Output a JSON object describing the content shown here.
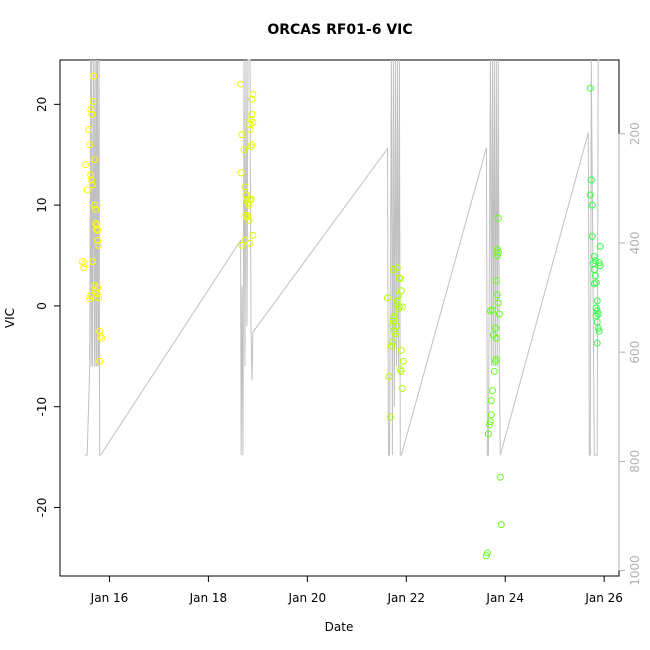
{
  "chart_data": {
    "type": "scatter",
    "title": "ORCAS RF01-6 VIC",
    "xlabel": "Date",
    "ylabel": "VIC",
    "x_ticks": [
      {
        "value": 16,
        "label": "Jan 16"
      },
      {
        "value": 18,
        "label": "Jan 18"
      },
      {
        "value": 20,
        "label": "Jan 20"
      },
      {
        "value": 22,
        "label": "Jan 22"
      },
      {
        "value": 24,
        "label": "Jan 24"
      },
      {
        "value": 26,
        "label": "Jan 26"
      }
    ],
    "y_ticks": [
      -20,
      -10,
      0,
      10,
      20
    ],
    "y_right_ticks": [
      200,
      400,
      600,
      800,
      1000
    ],
    "xlim": [
      15.0,
      26.3
    ],
    "ylim": [
      -26.8,
      24.4
    ],
    "y_right_lim": [
      1010,
      65
    ],
    "grid": false,
    "colors": {
      "flight1": "#ffff00",
      "flight2": "#e6ff00",
      "flight3": "#b3ff00",
      "flight4": "#66ff1a",
      "flight5": "#33ff44",
      "altitude_line": "#c0c0c0"
    },
    "series": [
      {
        "flight": 1,
        "color_key": "flight1",
        "points": [
          [
            15.45,
            4.4
          ],
          [
            15.48,
            3.8
          ],
          [
            15.5,
            4.2
          ],
          [
            15.52,
            14
          ],
          [
            15.55,
            11.5
          ],
          [
            15.58,
            17.5
          ],
          [
            15.6,
            16
          ],
          [
            15.62,
            13
          ],
          [
            15.63,
            12.5
          ],
          [
            15.65,
            12
          ],
          [
            15.67,
            20.3
          ],
          [
            15.68,
            22.8
          ],
          [
            15.7,
            14.5
          ],
          [
            15.7,
            10
          ],
          [
            15.72,
            9.6
          ],
          [
            15.72,
            8.2
          ],
          [
            15.74,
            8
          ],
          [
            15.74,
            7.6
          ],
          [
            15.76,
            7.5
          ],
          [
            15.76,
            6.5
          ],
          [
            15.78,
            6
          ],
          [
            15.66,
            4.4
          ],
          [
            15.7,
            2
          ],
          [
            15.72,
            1.5
          ],
          [
            15.75,
            1.2
          ],
          [
            15.78,
            0.8
          ],
          [
            15.62,
            1
          ],
          [
            15.6,
            0.7
          ],
          [
            15.8,
            -2.5
          ],
          [
            15.82,
            -3
          ],
          [
            15.84,
            -3.2
          ],
          [
            15.8,
            -5.5
          ],
          [
            15.76,
            1.8
          ],
          [
            15.64,
            19
          ],
          [
            15.62,
            19.5
          ]
        ]
      },
      {
        "flight": 2,
        "color_key": "flight2",
        "points": [
          [
            18.65,
            22
          ],
          [
            18.68,
            17
          ],
          [
            18.72,
            15.5
          ],
          [
            18.66,
            13.2
          ],
          [
            18.74,
            11.8
          ],
          [
            18.76,
            11
          ],
          [
            18.78,
            10.5
          ],
          [
            18.8,
            10.2
          ],
          [
            18.82,
            10
          ],
          [
            18.84,
            10.5
          ],
          [
            18.86,
            10.6
          ],
          [
            18.76,
            9
          ],
          [
            18.78,
            8.8
          ],
          [
            18.8,
            8.9
          ],
          [
            18.82,
            8.5
          ],
          [
            18.74,
            6.5
          ],
          [
            18.68,
            6
          ],
          [
            18.84,
            6.2
          ],
          [
            18.9,
            7
          ],
          [
            18.86,
            15.8
          ],
          [
            18.88,
            16
          ],
          [
            18.84,
            18
          ],
          [
            18.86,
            18.5
          ],
          [
            18.88,
            19
          ],
          [
            18.88,
            20.5
          ],
          [
            18.9,
            21
          ],
          [
            18.84,
            17.5
          ],
          [
            18.9,
            18.2
          ]
        ]
      },
      {
        "flight": 3,
        "color_key": "flight3",
        "points": [
          [
            21.62,
            0.8
          ],
          [
            21.65,
            -7
          ],
          [
            21.68,
            -11
          ],
          [
            21.7,
            -4
          ],
          [
            21.72,
            -2
          ],
          [
            21.74,
            -1.5
          ],
          [
            21.75,
            -1.2
          ],
          [
            21.76,
            -2.5
          ],
          [
            21.78,
            -2.8
          ],
          [
            21.8,
            -2
          ],
          [
            21.82,
            0.5
          ],
          [
            21.84,
            1
          ],
          [
            21.74,
            3.6
          ],
          [
            21.82,
            3.8
          ],
          [
            21.86,
            2.8
          ],
          [
            21.88,
            2.7
          ],
          [
            21.9,
            1.5
          ],
          [
            21.92,
            -0.1
          ],
          [
            21.9,
            -4.4
          ],
          [
            21.88,
            -6.3
          ],
          [
            21.9,
            -6.5
          ],
          [
            21.92,
            -8.2
          ],
          [
            21.94,
            -5.5
          ],
          [
            21.8,
            0.2
          ],
          [
            21.84,
            -0.3
          ],
          [
            21.76,
            -1
          ],
          [
            21.72,
            -3.6
          ],
          [
            21.86,
            -0.1
          ]
        ]
      },
      {
        "flight": 4,
        "color_key": "flight4",
        "points": [
          [
            23.62,
            -24.8
          ],
          [
            23.64,
            -24.5
          ],
          [
            23.66,
            -12.7
          ],
          [
            23.68,
            -11.8
          ],
          [
            23.7,
            -11.5
          ],
          [
            23.72,
            -10.8
          ],
          [
            23.74,
            -8.4
          ],
          [
            23.72,
            -9.4
          ],
          [
            23.74,
            -0.4
          ],
          [
            23.76,
            -2.9
          ],
          [
            23.78,
            -6.5
          ],
          [
            23.8,
            -5.5
          ],
          [
            23.82,
            -5.3
          ],
          [
            23.8,
            -2.2
          ],
          [
            23.82,
            2.5
          ],
          [
            23.84,
            5
          ],
          [
            23.86,
            5.3
          ],
          [
            23.84,
            5.6
          ],
          [
            23.86,
            8.7
          ],
          [
            23.84,
            1.1
          ],
          [
            23.86,
            0.3
          ],
          [
            23.88,
            -0.8
          ],
          [
            23.9,
            -17
          ],
          [
            23.92,
            -21.7
          ],
          [
            23.7,
            -0.5
          ],
          [
            23.82,
            -3.2
          ]
        ]
      },
      {
        "flight": 5,
        "color_key": "flight5",
        "points": [
          [
            25.72,
            21.6
          ],
          [
            25.72,
            11
          ],
          [
            25.74,
            12.5
          ],
          [
            25.76,
            10
          ],
          [
            25.76,
            6.9
          ],
          [
            25.8,
            4.9
          ],
          [
            25.82,
            4.5
          ],
          [
            25.78,
            4.2
          ],
          [
            25.8,
            3.6
          ],
          [
            25.82,
            3
          ],
          [
            25.8,
            2.2
          ],
          [
            25.84,
            2.3
          ],
          [
            25.86,
            0.5
          ],
          [
            25.84,
            -0.2
          ],
          [
            25.86,
            -0.5
          ],
          [
            25.88,
            -0.8
          ],
          [
            25.84,
            -1
          ],
          [
            25.86,
            -1.6
          ],
          [
            25.88,
            -2.2
          ],
          [
            25.9,
            -2.5
          ],
          [
            25.86,
            -3.7
          ],
          [
            25.9,
            4.3
          ],
          [
            25.92,
            4
          ],
          [
            25.92,
            5.9
          ]
        ]
      }
    ],
    "altitude_trace": [
      [
        15.5,
        -14.8
      ],
      [
        15.55,
        -14.8
      ],
      [
        15.6,
        -6
      ],
      [
        15.62,
        24.4
      ],
      [
        15.63,
        -6
      ],
      [
        15.64,
        24.4
      ],
      [
        15.66,
        -6
      ],
      [
        15.68,
        24.4
      ],
      [
        15.7,
        -6
      ],
      [
        15.71,
        24.4
      ],
      [
        15.73,
        -6
      ],
      [
        15.74,
        24.4
      ],
      [
        15.75,
        -6
      ],
      [
        15.76,
        24.4
      ],
      [
        15.78,
        -6
      ],
      [
        15.79,
        24.4
      ],
      [
        15.8,
        -14.8
      ],
      [
        15.82,
        -14.8
      ],
      [
        18.65,
        6.5
      ],
      [
        18.66,
        -14.8
      ],
      [
        18.68,
        2
      ],
      [
        18.7,
        -14.8
      ],
      [
        18.72,
        24.4
      ],
      [
        18.74,
        -6
      ],
      [
        18.76,
        24.4
      ],
      [
        18.78,
        -2
      ],
      [
        18.8,
        24.4
      ],
      [
        18.84,
        24.4
      ],
      [
        18.86,
        -2
      ],
      [
        18.88,
        -7.4
      ],
      [
        18.9,
        -2.6
      ],
      [
        21.62,
        15.6
      ],
      [
        21.64,
        -14.8
      ],
      [
        21.66,
        -14.8
      ],
      [
        21.68,
        5
      ],
      [
        21.7,
        24.4
      ],
      [
        21.72,
        -14.8
      ],
      [
        21.74,
        24.4
      ],
      [
        21.76,
        -10
      ],
      [
        21.78,
        24.4
      ],
      [
        21.8,
        -6
      ],
      [
        21.82,
        24.4
      ],
      [
        21.84,
        -6
      ],
      [
        21.86,
        24.4
      ],
      [
        21.88,
        -14.8
      ],
      [
        21.9,
        -14.8
      ],
      [
        23.62,
        15.7
      ],
      [
        23.64,
        -14.8
      ],
      [
        23.66,
        -14.8
      ],
      [
        23.7,
        24.4
      ],
      [
        23.72,
        -6
      ],
      [
        23.74,
        24.4
      ],
      [
        23.76,
        -6
      ],
      [
        23.78,
        24.4
      ],
      [
        23.8,
        -6
      ],
      [
        23.82,
        24.4
      ],
      [
        23.84,
        -6
      ],
      [
        23.86,
        24.4
      ],
      [
        23.88,
        -6
      ],
      [
        23.9,
        -14.8
      ],
      [
        25.68,
        17.2
      ],
      [
        25.7,
        -14.8
      ],
      [
        25.72,
        -14.8
      ],
      [
        25.74,
        24.4
      ],
      [
        25.8,
        -14.8
      ],
      [
        25.86,
        -14.8
      ],
      [
        25.88,
        24.4
      ],
      [
        25.9,
        24.4
      ]
    ]
  }
}
